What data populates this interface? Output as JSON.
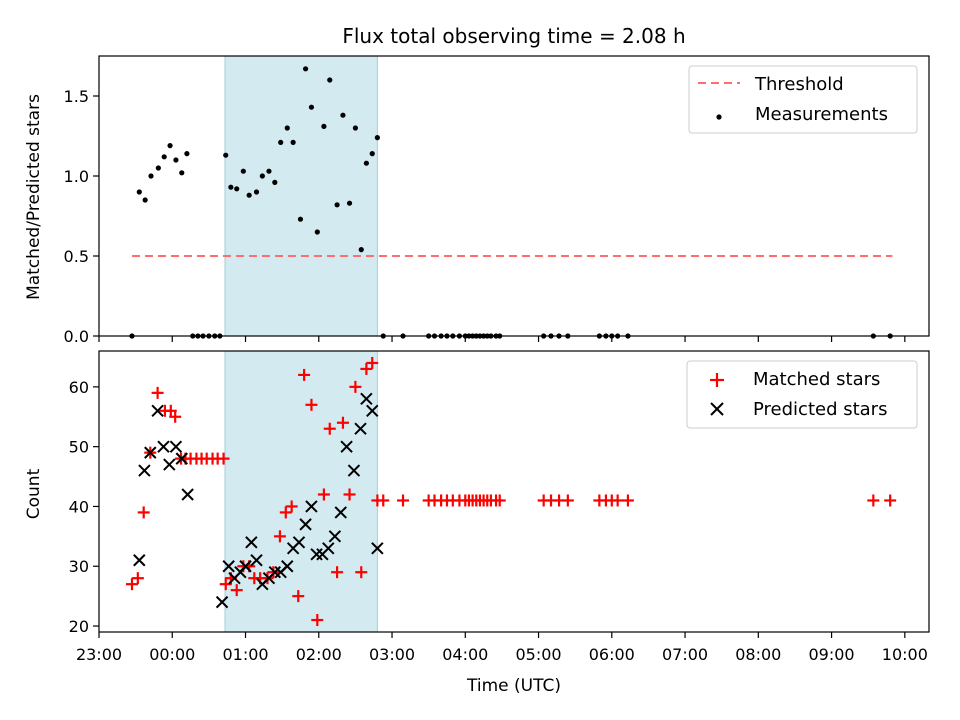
{
  "chart_data": [
    {
      "type": "scatter",
      "panel": "top",
      "title": "Flux total observing time = 2.08 h",
      "xlabel": "",
      "ylabel": "Matched/Predicted stars",
      "xlim": [
        23.0,
        10.33
      ],
      "ylim": [
        0.0,
        1.75
      ],
      "y_ticks": [
        0.0,
        0.5,
        1.0,
        1.5
      ],
      "y_tick_labels": [
        "0.0",
        "0.5",
        "1.0",
        "1.5"
      ],
      "highlight_band": [
        0.72,
        2.8
      ],
      "threshold": {
        "name": "Threshold",
        "value": 0.5,
        "x_range": [
          23.45,
          9.83
        ],
        "color": "#ff6e6e"
      },
      "legend": {
        "position": "top-right",
        "entries": [
          "Threshold",
          "Measurements"
        ]
      },
      "series": [
        {
          "name": "Measurements",
          "color": "#000000",
          "points": [
            [
              23.45,
              0.0
            ],
            [
              23.55,
              0.9
            ],
            [
              23.63,
              0.85
            ],
            [
              23.71,
              1.0
            ],
            [
              23.81,
              1.05
            ],
            [
              23.89,
              1.12
            ],
            [
              23.97,
              1.19
            ],
            [
              24.05,
              1.1
            ],
            [
              24.13,
              1.02
            ],
            [
              24.2,
              1.14
            ],
            [
              24.28,
              0.0
            ],
            [
              24.35,
              0.0
            ],
            [
              24.42,
              0.0
            ],
            [
              24.5,
              0.0
            ],
            [
              24.58,
              0.0
            ],
            [
              24.65,
              0.0
            ],
            [
              24.73,
              1.13
            ],
            [
              24.8,
              0.93
            ],
            [
              24.88,
              0.92
            ],
            [
              24.97,
              1.03
            ],
            [
              25.05,
              0.88
            ],
            [
              25.15,
              0.9
            ],
            [
              25.23,
              1.0
            ],
            [
              25.32,
              1.03
            ],
            [
              25.4,
              0.96
            ],
            [
              25.48,
              1.21
            ],
            [
              25.57,
              1.3
            ],
            [
              25.65,
              1.21
            ],
            [
              25.75,
              0.73
            ],
            [
              25.82,
              1.67
            ],
            [
              25.9,
              1.43
            ],
            [
              25.98,
              0.65
            ],
            [
              26.07,
              1.31
            ],
            [
              26.15,
              1.6
            ],
            [
              26.25,
              0.82
            ],
            [
              26.33,
              1.38
            ],
            [
              26.42,
              0.83
            ],
            [
              26.5,
              1.3
            ],
            [
              26.58,
              0.54
            ],
            [
              26.65,
              1.08
            ],
            [
              26.73,
              1.14
            ],
            [
              26.8,
              1.24
            ],
            [
              26.88,
              0.0
            ],
            [
              27.15,
              0.0
            ],
            [
              27.5,
              0.0
            ],
            [
              27.58,
              0.0
            ],
            [
              27.67,
              0.0
            ],
            [
              27.75,
              0.0
            ],
            [
              27.83,
              0.0
            ],
            [
              27.92,
              0.0
            ],
            [
              28.0,
              0.0
            ],
            [
              28.05,
              0.0
            ],
            [
              28.1,
              0.0
            ],
            [
              28.15,
              0.0
            ],
            [
              28.2,
              0.0
            ],
            [
              28.25,
              0.0
            ],
            [
              28.3,
              0.0
            ],
            [
              28.35,
              0.0
            ],
            [
              28.42,
              0.0
            ],
            [
              28.47,
              0.0
            ],
            [
              29.07,
              0.0
            ],
            [
              29.17,
              0.0
            ],
            [
              29.28,
              0.0
            ],
            [
              29.4,
              0.0
            ],
            [
              29.83,
              0.0
            ],
            [
              29.92,
              0.0
            ],
            [
              30.0,
              0.0
            ],
            [
              30.08,
              0.0
            ],
            [
              30.22,
              0.0
            ],
            [
              33.57,
              0.0
            ],
            [
              33.8,
              0.0
            ]
          ]
        }
      ]
    },
    {
      "type": "scatter",
      "panel": "bottom",
      "title": "",
      "xlabel": "Time (UTC)",
      "ylabel": "Count",
      "xlim": [
        23.0,
        10.33
      ],
      "ylim": [
        19,
        66
      ],
      "y_ticks": [
        20,
        30,
        40,
        50,
        60
      ],
      "y_tick_labels": [
        "20",
        "30",
        "40",
        "50",
        "60"
      ],
      "x_ticks": [
        23,
        24,
        25,
        26,
        27,
        28,
        29,
        30,
        31,
        32,
        33,
        34
      ],
      "x_tick_labels": [
        "23:00",
        "00:00",
        "01:00",
        "02:00",
        "03:00",
        "04:00",
        "05:00",
        "06:00",
        "07:00",
        "08:00",
        "09:00",
        "10:00"
      ],
      "highlight_band": [
        0.72,
        2.8
      ],
      "legend": {
        "position": "top-right",
        "entries": [
          "Matched stars",
          "Predicted stars"
        ]
      },
      "series": [
        {
          "name": "Matched stars",
          "marker": "plus",
          "color": "#ff0000",
          "points": [
            [
              23.45,
              27
            ],
            [
              23.53,
              28
            ],
            [
              23.61,
              39
            ],
            [
              23.7,
              49
            ],
            [
              23.8,
              59
            ],
            [
              23.9,
              56
            ],
            [
              23.98,
              56
            ],
            [
              24.04,
              55
            ],
            [
              24.12,
              48
            ],
            [
              24.18,
              48
            ],
            [
              24.25,
              48
            ],
            [
              24.33,
              48
            ],
            [
              24.4,
              48
            ],
            [
              24.47,
              48
            ],
            [
              24.55,
              48
            ],
            [
              24.62,
              48
            ],
            [
              24.7,
              48
            ],
            [
              24.73,
              27
            ],
            [
              24.8,
              28
            ],
            [
              24.88,
              26
            ],
            [
              24.97,
              30
            ],
            [
              25.05,
              30
            ],
            [
              25.12,
              28
            ],
            [
              25.2,
              28
            ],
            [
              25.3,
              28
            ],
            [
              25.38,
              29
            ],
            [
              25.47,
              35
            ],
            [
              25.55,
              39
            ],
            [
              25.63,
              40
            ],
            [
              25.72,
              25
            ],
            [
              25.8,
              62
            ],
            [
              25.9,
              57
            ],
            [
              25.98,
              21
            ],
            [
              26.07,
              42
            ],
            [
              26.15,
              53
            ],
            [
              26.25,
              29
            ],
            [
              26.33,
              54
            ],
            [
              26.42,
              42
            ],
            [
              26.5,
              60
            ],
            [
              26.58,
              29
            ],
            [
              26.65,
              63
            ],
            [
              26.73,
              64
            ],
            [
              26.8,
              41
            ],
            [
              26.88,
              41
            ],
            [
              27.15,
              41
            ],
            [
              27.5,
              41
            ],
            [
              27.58,
              41
            ],
            [
              27.67,
              41
            ],
            [
              27.75,
              41
            ],
            [
              27.83,
              41
            ],
            [
              27.92,
              41
            ],
            [
              28.0,
              41
            ],
            [
              28.05,
              41
            ],
            [
              28.1,
              41
            ],
            [
              28.15,
              41
            ],
            [
              28.2,
              41
            ],
            [
              28.25,
              41
            ],
            [
              28.3,
              41
            ],
            [
              28.35,
              41
            ],
            [
              28.42,
              41
            ],
            [
              28.47,
              41
            ],
            [
              29.07,
              41
            ],
            [
              29.17,
              41
            ],
            [
              29.28,
              41
            ],
            [
              29.4,
              41
            ],
            [
              29.83,
              41
            ],
            [
              29.92,
              41
            ],
            [
              30.0,
              41
            ],
            [
              30.08,
              41
            ],
            [
              30.22,
              41
            ],
            [
              33.57,
              41
            ],
            [
              33.8,
              41
            ]
          ]
        },
        {
          "name": "Predicted stars",
          "marker": "x",
          "color": "#000000",
          "points": [
            [
              23.55,
              31
            ],
            [
              23.62,
              46
            ],
            [
              23.7,
              49
            ],
            [
              23.8,
              56
            ],
            [
              23.88,
              50
            ],
            [
              23.96,
              47
            ],
            [
              24.05,
              50
            ],
            [
              24.13,
              48
            ],
            [
              24.21,
              42
            ],
            [
              24.68,
              24
            ],
            [
              24.77,
              30
            ],
            [
              24.85,
              28
            ],
            [
              24.93,
              29
            ],
            [
              25.0,
              30
            ],
            [
              25.08,
              34
            ],
            [
              25.15,
              31
            ],
            [
              25.23,
              27
            ],
            [
              25.32,
              28
            ],
            [
              25.4,
              29
            ],
            [
              25.48,
              29
            ],
            [
              25.57,
              30
            ],
            [
              25.65,
              33
            ],
            [
              25.73,
              34
            ],
            [
              25.82,
              37
            ],
            [
              25.9,
              40
            ],
            [
              25.97,
              32
            ],
            [
              26.05,
              32
            ],
            [
              26.13,
              33
            ],
            [
              26.22,
              35
            ],
            [
              26.3,
              39
            ],
            [
              26.38,
              50
            ],
            [
              26.48,
              46
            ],
            [
              26.57,
              53
            ],
            [
              26.65,
              58
            ],
            [
              26.73,
              56
            ],
            [
              26.8,
              33
            ]
          ]
        }
      ]
    }
  ]
}
